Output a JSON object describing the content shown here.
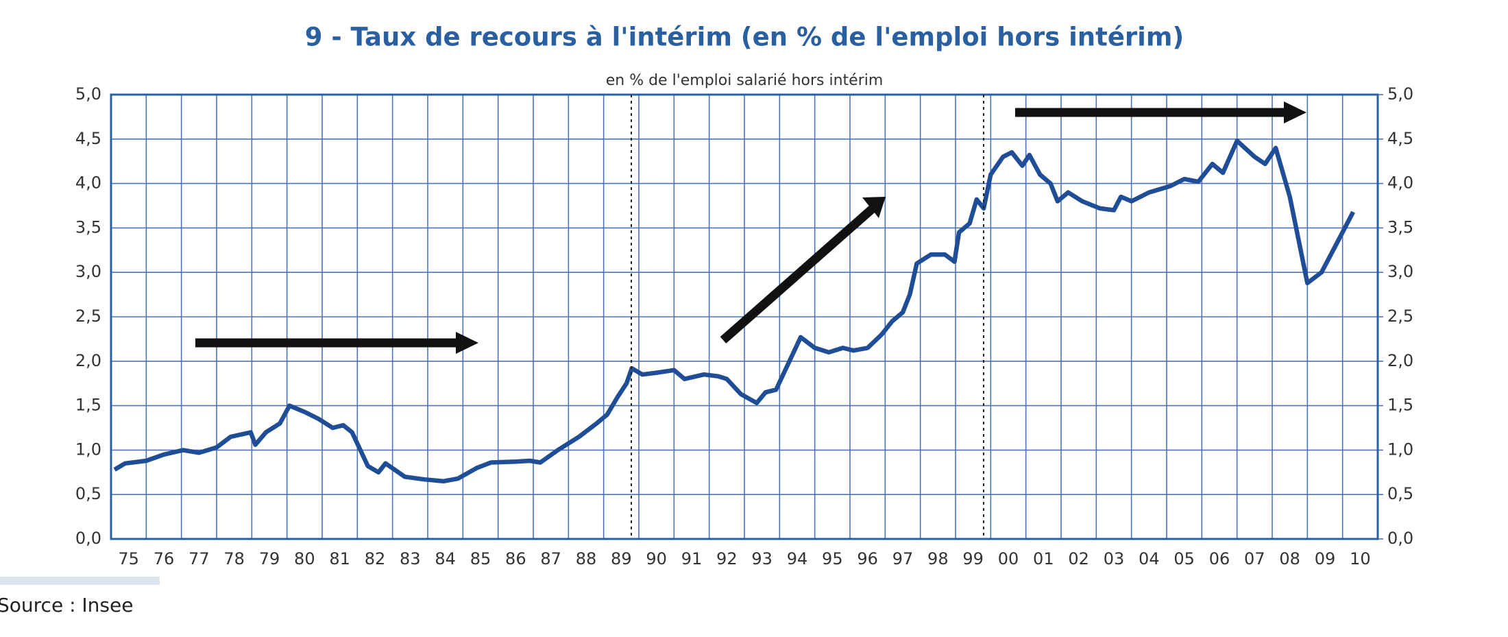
{
  "chart_data": {
    "type": "line",
    "title": "9 -  Taux de recours à l'intérim (en % de l'emploi hors intérim)",
    "subtitle": "en % de l'emploi salarié hors intérim",
    "source": "Source : Insee",
    "grid": true,
    "xlim": [
      1975,
      2011
    ],
    "xticks": [
      {
        "value": 1975.5,
        "label": "75"
      },
      {
        "value": 1976.5,
        "label": "76"
      },
      {
        "value": 1977.5,
        "label": "77"
      },
      {
        "value": 1978.5,
        "label": "78"
      },
      {
        "value": 1979.5,
        "label": "79"
      },
      {
        "value": 1980.5,
        "label": "80"
      },
      {
        "value": 1981.5,
        "label": "81"
      },
      {
        "value": 1982.5,
        "label": "82"
      },
      {
        "value": 1983.5,
        "label": "83"
      },
      {
        "value": 1984.5,
        "label": "84"
      },
      {
        "value": 1985.5,
        "label": "85"
      },
      {
        "value": 1986.5,
        "label": "86"
      },
      {
        "value": 1987.5,
        "label": "87"
      },
      {
        "value": 1988.5,
        "label": "88"
      },
      {
        "value": 1989.5,
        "label": "89"
      },
      {
        "value": 1990.5,
        "label": "90"
      },
      {
        "value": 1991.5,
        "label": "91"
      },
      {
        "value": 1992.5,
        "label": "92"
      },
      {
        "value": 1993.5,
        "label": "93"
      },
      {
        "value": 1994.5,
        "label": "94"
      },
      {
        "value": 1995.5,
        "label": "95"
      },
      {
        "value": 1996.5,
        "label": "96"
      },
      {
        "value": 1997.5,
        "label": "97"
      },
      {
        "value": 1998.5,
        "label": "98"
      },
      {
        "value": 1999.5,
        "label": "99"
      },
      {
        "value": 2000.5,
        "label": "00"
      },
      {
        "value": 2001.5,
        "label": "01"
      },
      {
        "value": 2002.5,
        "label": "02"
      },
      {
        "value": 2003.5,
        "label": "03"
      },
      {
        "value": 2004.5,
        "label": "04"
      },
      {
        "value": 2005.5,
        "label": "05"
      },
      {
        "value": 2006.5,
        "label": "06"
      },
      {
        "value": 2007.5,
        "label": "07"
      },
      {
        "value": 2008.5,
        "label": "08"
      },
      {
        "value": 2009.5,
        "label": "09"
      },
      {
        "value": 2010.5,
        "label": "10"
      }
    ],
    "ylim": [
      0,
      5
    ],
    "yticks": [
      {
        "value": 0,
        "label": "0,0"
      },
      {
        "value": 0.5,
        "label": "0,5"
      },
      {
        "value": 1,
        "label": "1,0"
      },
      {
        "value": 1.5,
        "label": "1,5"
      },
      {
        "value": 2,
        "label": "2,0"
      },
      {
        "value": 2.5,
        "label": "2,5"
      },
      {
        "value": 3,
        "label": "3,0"
      },
      {
        "value": 3.5,
        "label": "3,5"
      },
      {
        "value": 4,
        "label": "4,0"
      },
      {
        "value": 4.5,
        "label": "4,5"
      },
      {
        "value": 5,
        "label": "5,0"
      }
    ],
    "y2lim": [
      0,
      5
    ],
    "y2ticks": [
      {
        "value": 0,
        "label": "0,0"
      },
      {
        "value": 0.5,
        "label": "0,5"
      },
      {
        "value": 1,
        "label": "1,0"
      },
      {
        "value": 1.5,
        "label": "1,5"
      },
      {
        "value": 2,
        "label": "2,0"
      },
      {
        "value": 2.5,
        "label": "2,5"
      },
      {
        "value": 3,
        "label": "3,0"
      },
      {
        "value": 3.5,
        "label": "3,5"
      },
      {
        "value": 4,
        "label": "4,0"
      },
      {
        "value": 4.5,
        "label": "4,5"
      },
      {
        "value": 5,
        "label": "5,0"
      }
    ],
    "x": [
      1975.1,
      1975.4,
      1976.0,
      1976.5,
      1977.05,
      1977.5,
      1978.0,
      1978.4,
      1978.97,
      1979.1,
      1979.4,
      1979.8,
      1980.07,
      1980.5,
      1980.9,
      1981.3,
      1981.6,
      1981.85,
      1982.3,
      1982.6,
      1982.8,
      1983.35,
      1983.9,
      1984.45,
      1984.86,
      1985.4,
      1985.8,
      1986.5,
      1986.9,
      1987.2,
      1987.7,
      1988.3,
      1988.8,
      1989.1,
      1989.4,
      1989.65,
      1989.8,
      1990.1,
      1990.5,
      1991.0,
      1991.3,
      1991.85,
      1992.26,
      1992.5,
      1992.9,
      1993.35,
      1993.6,
      1993.9,
      1994.6,
      1995.0,
      1995.4,
      1995.8,
      1996.1,
      1996.5,
      1996.9,
      1997.2,
      1997.5,
      1997.7,
      1997.9,
      1998.3,
      1998.7,
      1998.97,
      1999.1,
      1999.4,
      1999.6,
      1999.8,
      2000.0,
      2000.35,
      2000.6,
      2000.9,
      2001.1,
      2001.4,
      2001.7,
      2001.9,
      2002.2,
      2002.6,
      2003.1,
      2003.5,
      2003.7,
      2004.0,
      2004.5,
      2005.1,
      2005.5,
      2005.9,
      2006.3,
      2006.6,
      2007.0,
      2007.5,
      2007.8,
      2008.1,
      2008.5,
      2009.0,
      2009.4,
      2009.8,
      2010.3
    ],
    "series": [
      {
        "name": "Taux de recours à l'intérim",
        "color": "#1f4e96",
        "values": [
          0.78,
          0.85,
          0.88,
          0.95,
          1.0,
          0.97,
          1.03,
          1.15,
          1.2,
          1.06,
          1.2,
          1.3,
          1.5,
          1.43,
          1.35,
          1.25,
          1.28,
          1.2,
          0.82,
          0.75,
          0.85,
          0.7,
          0.67,
          0.65,
          0.68,
          0.8,
          0.86,
          0.87,
          0.88,
          0.86,
          1.0,
          1.15,
          1.3,
          1.4,
          1.6,
          1.75,
          1.92,
          1.85,
          1.87,
          1.9,
          1.8,
          1.85,
          1.83,
          1.8,
          1.63,
          1.53,
          1.65,
          1.68,
          2.27,
          2.15,
          2.1,
          2.15,
          2.12,
          2.15,
          2.3,
          2.45,
          2.55,
          2.75,
          3.1,
          3.2,
          3.2,
          3.12,
          3.45,
          3.55,
          3.82,
          3.72,
          4.1,
          4.3,
          4.35,
          4.2,
          4.32,
          4.1,
          4.0,
          3.8,
          3.9,
          3.8,
          3.72,
          3.7,
          3.85,
          3.8,
          3.9,
          3.97,
          4.05,
          4.02,
          4.22,
          4.12,
          4.48,
          4.3,
          4.22,
          4.4,
          3.85,
          2.88,
          3.0,
          3.3,
          3.68
        ]
      }
    ]
  }
}
